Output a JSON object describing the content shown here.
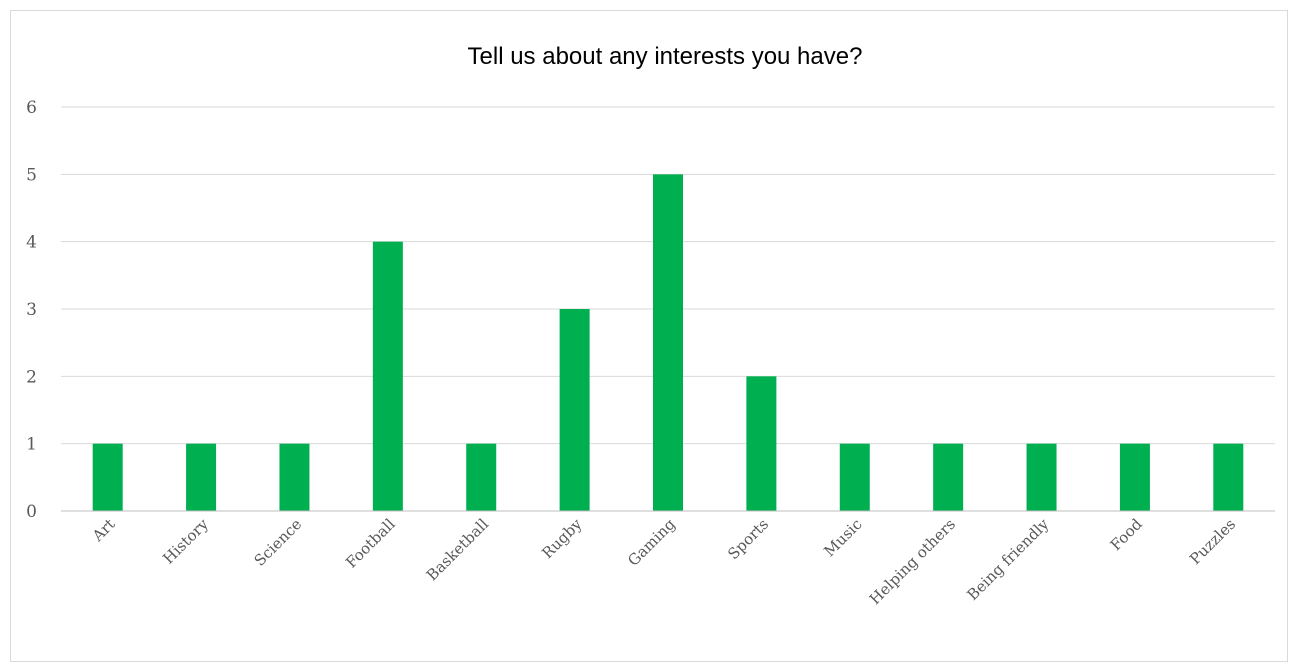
{
  "chart_data": {
    "type": "bar",
    "title": "Tell us about any interests you have?",
    "categories": [
      "Art",
      "History",
      "Science",
      "Football",
      "Basketball",
      "Rugby",
      "Gaming",
      "Sports",
      "Music",
      "Helping others",
      "Being friendly",
      "Food",
      "Puzzles"
    ],
    "values": [
      1,
      1,
      1,
      4,
      1,
      3,
      5,
      2,
      1,
      1,
      1,
      1,
      1
    ],
    "xlabel": "",
    "ylabel": "",
    "ylim": [
      0,
      6
    ],
    "yticks": [
      "0",
      "1",
      "2",
      "3",
      "4",
      "5",
      "6"
    ],
    "grid": true,
    "legend": "none",
    "bar_color": "#00b050"
  }
}
